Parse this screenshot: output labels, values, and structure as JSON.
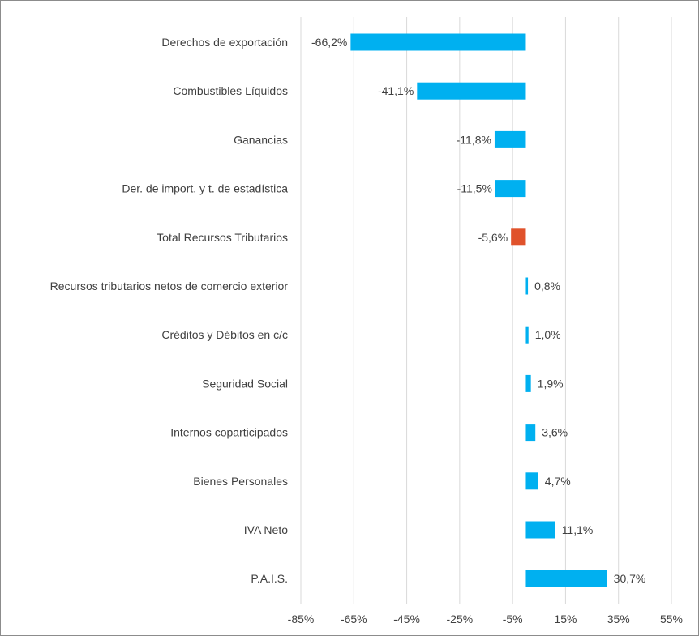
{
  "chart_data": {
    "type": "bar",
    "orientation": "horizontal",
    "categories": [
      "Derechos de exportación",
      "Combustibles Líquidos",
      "Ganancias",
      "Der. de import. y t. de estadística",
      "Total Recursos Tributarios",
      "Recursos tributarios netos de comercio exterior",
      "Créditos y Débitos en c/c",
      "Seguridad Social",
      "Internos coparticipados",
      "Bienes Personales",
      "IVA Neto",
      "P.A.I.S."
    ],
    "values": [
      -66.2,
      -41.1,
      -11.8,
      -11.5,
      -5.6,
      0.8,
      1.0,
      1.9,
      3.6,
      4.7,
      11.1,
      30.7
    ],
    "data_labels": [
      "-66,2%",
      "-41,1%",
      "-11,8%",
      "-11,5%",
      "-5,6%",
      "0,8%",
      "1,0%",
      "1,9%",
      "3,6%",
      "4,7%",
      "11,1%",
      "30,7%"
    ],
    "xlim": [
      -85,
      55
    ],
    "x_ticks": [
      -85,
      -65,
      -45,
      -25,
      -5,
      15,
      35,
      55
    ],
    "x_tick_labels": [
      "-85%",
      "-65%",
      "-45%",
      "-25%",
      "-5%",
      "15%",
      "35%",
      "55%"
    ],
    "title": "",
    "xlabel": "",
    "ylabel": "",
    "grid": "vertical",
    "colors": {
      "default_bar": "#00b0f0",
      "highlight_bar": "#e0522b",
      "highlight_category": "Total Recursos Tributarios",
      "grid": "#d9d9d9",
      "text": "#404040"
    }
  }
}
